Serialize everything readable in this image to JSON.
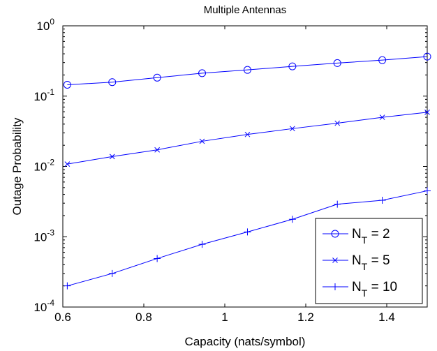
{
  "chart_data": {
    "type": "line",
    "title": "Multiple Antennas",
    "xlabel": "Capacity (nats/symbol)",
    "ylabel": "Outage Probability",
    "xlim": [
      0.6,
      1.5
    ],
    "ylim": [
      0.0001,
      1
    ],
    "yscale": "log",
    "xticks": [
      0.6,
      0.8,
      1.0,
      1.2,
      1.4
    ],
    "xtick_labels": [
      "0.6",
      "0.8",
      "1",
      "1.2",
      "1.4"
    ],
    "yticks": [
      0.0001,
      0.001,
      0.01,
      0.1,
      1
    ],
    "ytick_base": "10",
    "ytick_exponents": [
      "-4",
      "-3",
      "-2",
      "-1",
      "0"
    ],
    "grid": false,
    "legend_position": "bottom-right",
    "color": "#0000ff",
    "x": [
      0.611,
      0.722,
      0.833,
      0.944,
      1.056,
      1.167,
      1.278,
      1.389,
      1.5
    ],
    "series": [
      {
        "name": "N_T = 2",
        "legend_main": "N",
        "legend_sub": "T",
        "legend_rest": " = 2",
        "marker": "circle",
        "values": [
          0.145,
          0.158,
          0.183,
          0.212,
          0.236,
          0.265,
          0.295,
          0.325,
          0.365
        ]
      },
      {
        "name": "N_T = 5",
        "legend_main": "N",
        "legend_sub": "T",
        "legend_rest": " = 5",
        "marker": "x",
        "values": [
          0.0108,
          0.0138,
          0.0172,
          0.0228,
          0.0285,
          0.0345,
          0.0412,
          0.05,
          0.059
        ]
      },
      {
        "name": "N_T = 10",
        "legend_main": "N",
        "legend_sub": "T",
        "legend_rest": " = 10",
        "marker": "plus",
        "values": [
          0.0002,
          0.0003,
          0.00049,
          0.00078,
          0.00117,
          0.00177,
          0.0029,
          0.0033,
          0.0045
        ]
      }
    ]
  }
}
